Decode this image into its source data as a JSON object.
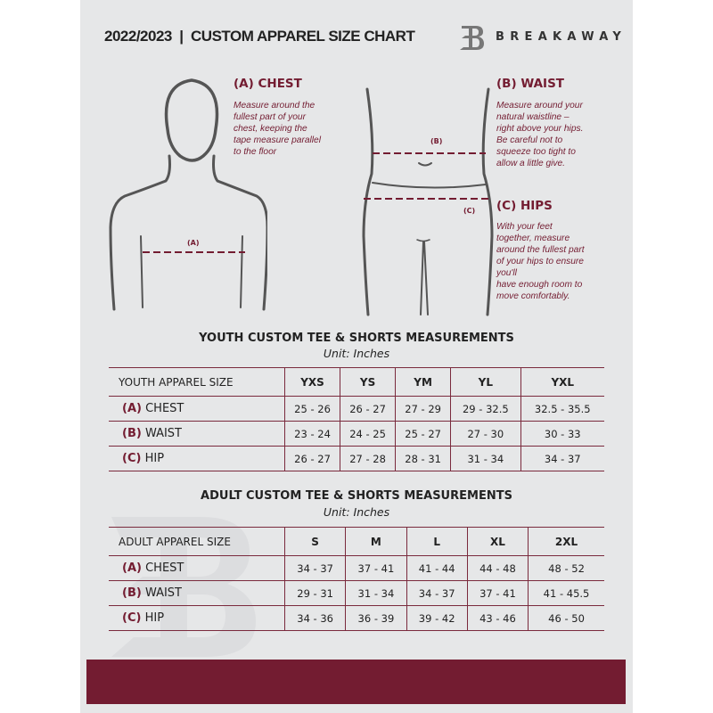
{
  "header": {
    "title": "2022/2023  |  CUSTOM APPAREL SIZE CHART",
    "brand": "BREAKAWAY"
  },
  "chest": {
    "title": "(A) CHEST",
    "text": "Measure around the\nfullest part of your\nchest, keeping the\ntape measure parallel\nto the floor",
    "label": "(A)"
  },
  "waist": {
    "title": "(B) WAIST",
    "text": "Measure around your\nnatural waistline –\nright above your hips.\nBe careful not to\nsqueeze too tight to\nallow a little give.",
    "label": "(B)"
  },
  "hips": {
    "title": "(C) HIPS",
    "text": "With your feet\ntogether, measure\naround the fullest part\nof your hips to ensure\nyou'll\nhave enough room to\nmove comfortably.",
    "label": "(C)"
  },
  "accent": "#731c31",
  "youth": {
    "title": "YOUTH CUSTOM TEE & SHORTS MEASUREMENTS",
    "unit": "Unit: Inches",
    "headers": [
      "YOUTH APPAREL SIZE",
      "YXS",
      "YS",
      "YM",
      "YL",
      "YXL"
    ],
    "rows": [
      {
        "letter": "(A)",
        "name": "CHEST",
        "values": [
          "25 - 26",
          "26 - 27",
          "27 - 29",
          "29 - 32.5",
          "32.5 - 35.5"
        ]
      },
      {
        "letter": "(B)",
        "name": "WAIST",
        "values": [
          "23 - 24",
          "24 - 25",
          "25 - 27",
          "27 - 30",
          "30 - 33"
        ]
      },
      {
        "letter": "(C)",
        "name": "HIP",
        "values": [
          "26 - 27",
          "27 - 28",
          "28 - 31",
          "31 - 34",
          "34 - 37"
        ]
      }
    ]
  },
  "adult": {
    "title": "ADULT CUSTOM TEE & SHORTS MEASUREMENTS",
    "unit": "Unit: Inches",
    "headers": [
      "ADULT APPAREL SIZE",
      "S",
      "M",
      "L",
      "XL",
      "2XL"
    ],
    "rows": [
      {
        "letter": "(A)",
        "name": "CHEST",
        "values": [
          "34 - 37",
          "37 - 41",
          "41 - 44",
          "44 - 48",
          "48 - 52"
        ]
      },
      {
        "letter": "(B)",
        "name": "WAIST",
        "values": [
          "29 - 31",
          "31 - 34",
          "34 - 37",
          "37 - 41",
          "41 - 45.5"
        ]
      },
      {
        "letter": "(C)",
        "name": "HIP",
        "values": [
          "34 - 36",
          "36 - 39",
          "39 - 42",
          "43 - 46",
          "46 - 50"
        ]
      }
    ]
  }
}
